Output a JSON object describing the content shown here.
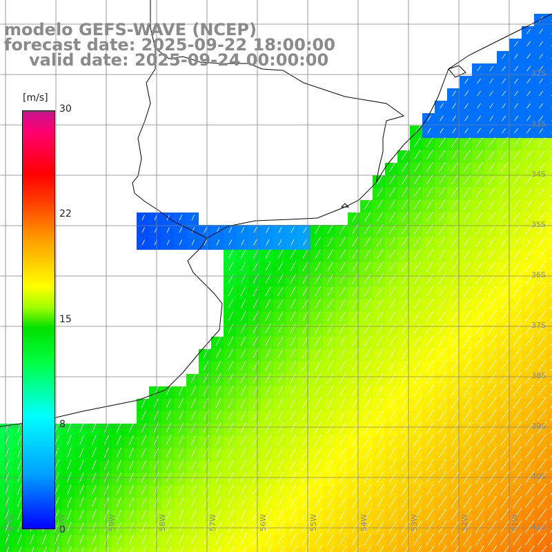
{
  "titles": {
    "line1": "modelo GEFS-WAVE (NCEP)",
    "line2": "forecast date: 2025-09-22 18:00:00",
    "line3": "valid date: 2025-09-24 00:00:00"
  },
  "colorbar": {
    "unit": "[m/s]",
    "ticks": [
      "30",
      "22",
      "15",
      "8",
      "0"
    ],
    "colors": [
      "#0000ff",
      "#00a0ff",
      "#00ffff",
      "#00ff40",
      "#a0ff00",
      "#ffff00",
      "#ffa000",
      "#ff0000",
      "#c81490"
    ]
  },
  "map": {
    "lon_labels": [
      "61W",
      "60W",
      "59W",
      "58W",
      "57W",
      "56W",
      "55W",
      "54W",
      "53W",
      "52W",
      "51W"
    ],
    "lat_labels": [
      "32S",
      "33S",
      "34S",
      "35S",
      "36S",
      "37S",
      "38S",
      "39S",
      "40S",
      "41S"
    ],
    "field": "wind speed",
    "land_color": "#ffffff",
    "grid_color": "#808080"
  }
}
